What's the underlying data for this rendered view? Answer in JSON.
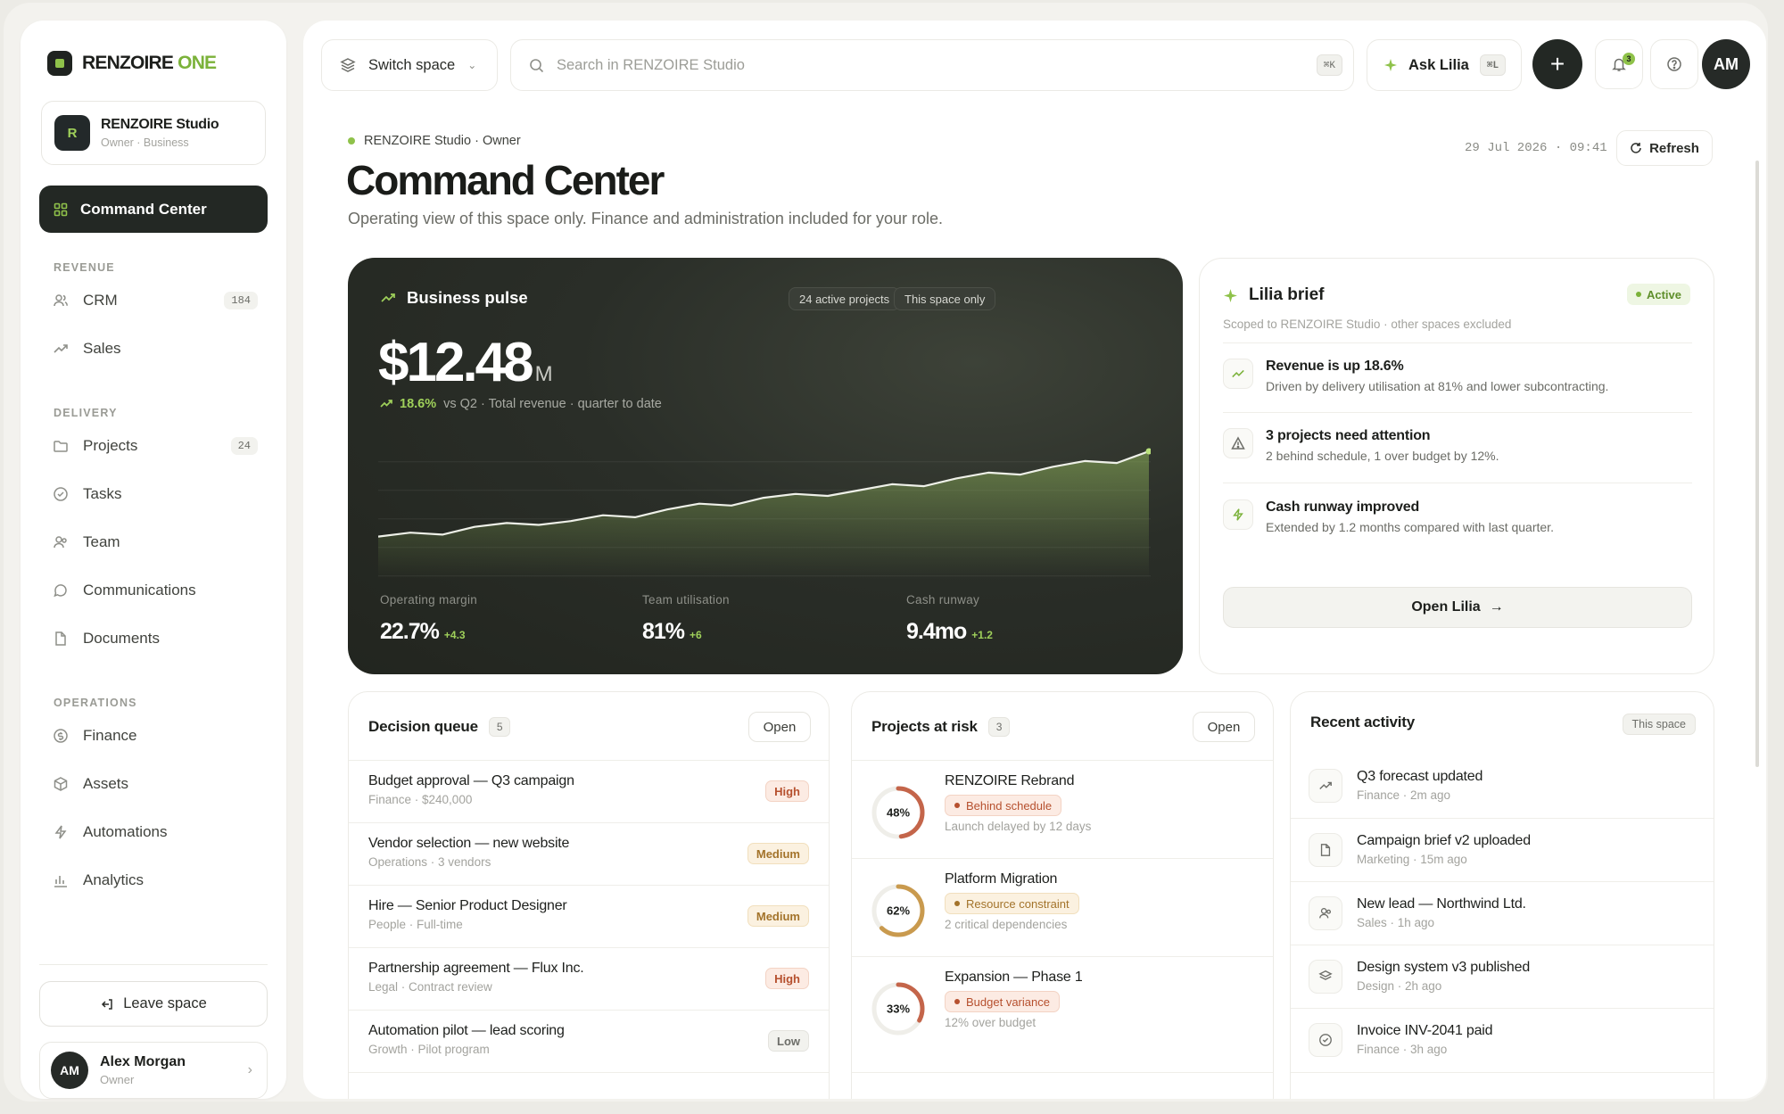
{
  "brand": {
    "name": "RENZOIRE",
    "accent": "ONE"
  },
  "space": {
    "initial": "R",
    "name": "RENZOIRE Studio",
    "meta": "Owner · Business"
  },
  "nav": {
    "active": "Command Center",
    "sections": [
      {
        "label": "REVENUE",
        "items": [
          {
            "label": "CRM",
            "count": "184",
            "icon": "users-icon"
          },
          {
            "label": "Sales",
            "count": "",
            "icon": "trend-icon"
          }
        ]
      },
      {
        "label": "DELIVERY",
        "items": [
          {
            "label": "Projects",
            "count": "24",
            "icon": "folder-icon"
          },
          {
            "label": "Tasks",
            "count": "",
            "icon": "check-circle-icon"
          },
          {
            "label": "Team",
            "count": "",
            "icon": "team-icon"
          },
          {
            "label": "Communications",
            "count": "",
            "icon": "chat-icon"
          },
          {
            "label": "Documents",
            "count": "",
            "icon": "document-icon"
          }
        ]
      },
      {
        "label": "OPERATIONS",
        "items": [
          {
            "label": "Finance",
            "count": "",
            "icon": "coin-icon"
          },
          {
            "label": "Assets",
            "count": "",
            "icon": "box-icon"
          },
          {
            "label": "Automations",
            "count": "",
            "icon": "bolt-icon"
          },
          {
            "label": "Analytics",
            "count": "",
            "icon": "bar-chart-icon"
          }
        ]
      }
    ],
    "leave": "Leave space"
  },
  "user": {
    "initials": "AM",
    "name": "Alex Morgan",
    "role": "Owner"
  },
  "topbar": {
    "switch_label": "Switch space",
    "search_placeholder": "Search in RENZOIRE Studio",
    "search_kbd": "⌘K",
    "ask_label": "Ask Lilia",
    "ask_kbd": "⌘L",
    "notifications": "3",
    "avatar": "AM"
  },
  "header": {
    "crumb": "RENZOIRE Studio · Owner",
    "title": "Command Center",
    "subtitle": "Operating view of this space only. Finance and administration included for your role.",
    "timestamp": "29 Jul 2026 · 09:41",
    "refresh": "Refresh"
  },
  "pulse": {
    "title": "Business pulse",
    "tags": [
      "24 active projects",
      "This space only"
    ],
    "value": "$12.48",
    "unit": "M",
    "delta": "18.6%",
    "delta_text": "vs Q2 · Total revenue · quarter to date",
    "metrics": [
      {
        "label": "Operating margin",
        "value": "22.7%",
        "change": "+4.3"
      },
      {
        "label": "Team utilisation",
        "value": "81%",
        "change": "+6"
      },
      {
        "label": "Cash runway",
        "value": "9.4mo",
        "change": "+1.2"
      }
    ]
  },
  "chart_data": {
    "type": "area",
    "title": "",
    "xlabel": "",
    "ylabel": "",
    "x": [
      1,
      2,
      3,
      4,
      5,
      6,
      7,
      8,
      9,
      10,
      11,
      12,
      13,
      14,
      15,
      16,
      17,
      18,
      19,
      20,
      21,
      22,
      23,
      24,
      25
    ],
    "values": [
      20,
      22,
      21,
      25,
      27,
      26,
      28,
      31,
      30,
      34,
      37,
      36,
      40,
      42,
      41,
      44,
      47,
      46,
      50,
      53,
      52,
      56,
      59,
      58,
      64
    ],
    "ylim": [
      0,
      70
    ],
    "grid": true,
    "color": "#8fb45a"
  },
  "brief": {
    "title": "Lilia brief",
    "status": "Active",
    "scope": "Scoped to RENZOIRE Studio · other spaces excluded",
    "items": [
      {
        "icon": "trend-icon",
        "title": "Revenue is up 18.6%",
        "desc": "Driven by delivery utilisation at 81% and lower subcontracting."
      },
      {
        "icon": "warning-icon",
        "title": "3 projects need attention",
        "desc": "2 behind schedule, 1 over budget by 12%."
      },
      {
        "icon": "bolt-icon",
        "title": "Cash runway improved",
        "desc": "Extended by 1.2 months compared with last quarter."
      }
    ],
    "open": "Open Lilia"
  },
  "decisions": {
    "title": "Decision queue",
    "count": "5",
    "open": "Open",
    "rows": [
      {
        "title": "Budget approval — Q3 campaign",
        "sub": "Finance · $240,000",
        "priority": "High",
        "level": "high"
      },
      {
        "title": "Vendor selection — new website",
        "sub": "Operations · 3 vendors",
        "priority": "Medium",
        "level": "medium"
      },
      {
        "title": "Hire — Senior Product Designer",
        "sub": "People · Full-time",
        "priority": "Medium",
        "level": "medium"
      },
      {
        "title": "Partnership agreement — Flux Inc.",
        "sub": "Legal · Contract review",
        "priority": "High",
        "level": "high"
      },
      {
        "title": "Automation pilot — lead scoring",
        "sub": "Growth · Pilot program",
        "priority": "Low",
        "level": "low"
      }
    ]
  },
  "risks": {
    "title": "Projects at risk",
    "count": "3",
    "open": "Open",
    "rows": [
      {
        "title": "RENZOIRE Rebrand",
        "progress": 0.48,
        "label": "48%",
        "status": "Behind schedule",
        "tone": "red",
        "note": "Launch delayed by 12 days",
        "color": "#c4654a"
      },
      {
        "title": "Platform Migration",
        "progress": 0.62,
        "label": "62%",
        "status": "Resource constraint",
        "tone": "amber",
        "note": "2 critical dependencies",
        "color": "#c99a4e"
      },
      {
        "title": "Expansion — Phase 1",
        "progress": 0.33,
        "label": "33%",
        "status": "Budget variance",
        "tone": "red",
        "note": "12% over budget",
        "color": "#c4654a"
      }
    ]
  },
  "activity": {
    "title": "Recent activity",
    "chip": "This space",
    "rows": [
      {
        "icon": "trend-icon",
        "title": "Q3 forecast updated",
        "sub": "Finance · 2m ago"
      },
      {
        "icon": "document-icon",
        "title": "Campaign brief v2 uploaded",
        "sub": "Marketing · 15m ago"
      },
      {
        "icon": "team-icon",
        "title": "New lead — Northwind Ltd.",
        "sub": "Sales · 1h ago"
      },
      {
        "icon": "layers-icon",
        "title": "Design system v3 published",
        "sub": "Design · 2h ago"
      },
      {
        "icon": "check-circle-icon",
        "title": "Invoice INV-2041 paid",
        "sub": "Finance · 3h ago"
      }
    ]
  }
}
